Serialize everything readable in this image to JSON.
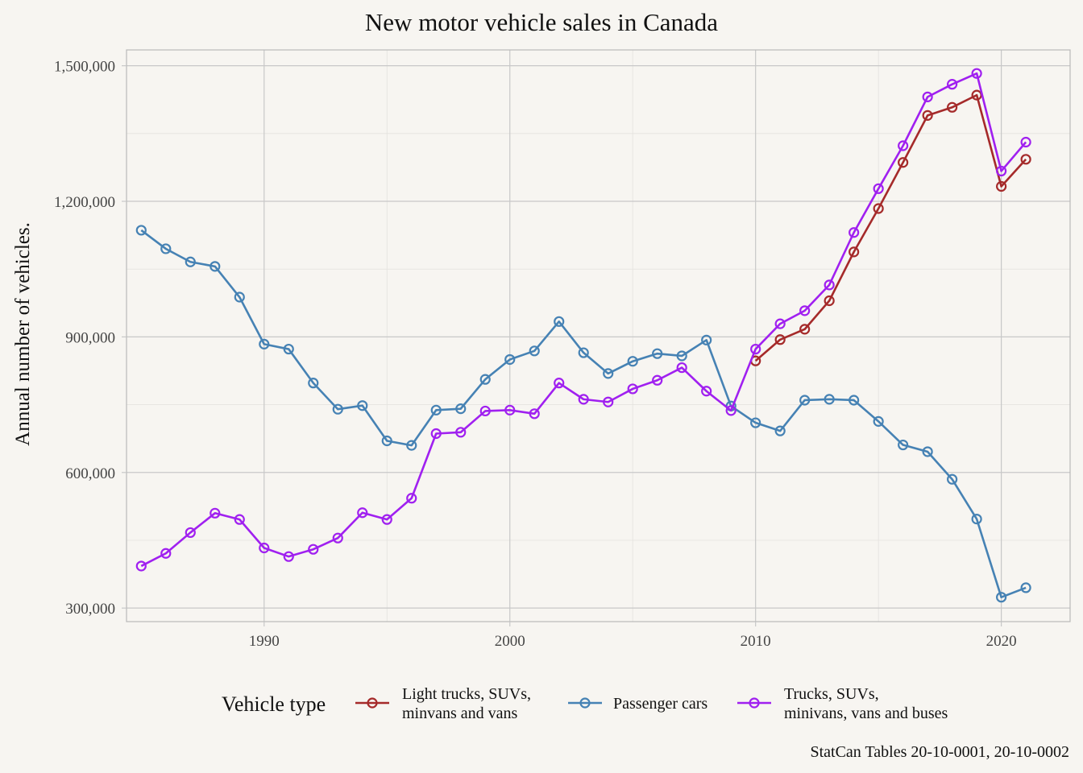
{
  "chart_data": {
    "type": "line",
    "title": "New motor vehicle sales in Canada",
    "xlabel": "",
    "ylabel": "Annual number of vehicles.",
    "xlim": [
      1984.4,
      2022.8
    ],
    "ylim": [
      270000,
      1535000
    ],
    "x_ticks": [
      1990,
      2000,
      2010,
      2020
    ],
    "y_ticks": [
      300000,
      600000,
      900000,
      1200000,
      1500000
    ],
    "y_tick_labels": [
      "300,000",
      "600,000",
      "900,000",
      "1,200,000",
      "1,500,000"
    ],
    "grid": true,
    "legend_position": "bottom",
    "legend_title": "Vehicle type",
    "caption": "StatCan Tables 20-10-0001, 20-10-0002",
    "series": [
      {
        "name": "Light trucks, SUVs,\nminvans and vans",
        "color": "#a52a2a",
        "x": [
          2010,
          2011,
          2012,
          2013,
          2014,
          2015,
          2016,
          2017,
          2018,
          2019,
          2020,
          2021
        ],
        "values": [
          847000,
          894000,
          917000,
          980000,
          1088000,
          1184000,
          1286000,
          1390000,
          1408000,
          1435000,
          1233000,
          1293000
        ]
      },
      {
        "name": "Passenger cars",
        "color": "#4682b4",
        "x": [
          1985,
          1986,
          1987,
          1988,
          1989,
          1990,
          1991,
          1992,
          1993,
          1994,
          1995,
          1996,
          1997,
          1998,
          1999,
          2000,
          2001,
          2002,
          2003,
          2004,
          2005,
          2006,
          2007,
          2008,
          2009,
          2010,
          2011,
          2012,
          2013,
          2014,
          2015,
          2016,
          2017,
          2018,
          2019,
          2020,
          2021
        ],
        "values": [
          1136000,
          1095000,
          1066000,
          1056000,
          988000,
          884000,
          873000,
          798000,
          740000,
          748000,
          670000,
          660000,
          738000,
          741000,
          806000,
          850000,
          869000,
          934000,
          865000,
          819000,
          846000,
          863000,
          858000,
          893000,
          747000,
          710000,
          692000,
          760000,
          762000,
          760000,
          713000,
          661000,
          646000,
          585000,
          497000,
          324000,
          345000
        ]
      },
      {
        "name": "Trucks, SUVs,\nminivans, vans and buses",
        "color": "#a020f0",
        "x": [
          1985,
          1986,
          1987,
          1988,
          1989,
          1990,
          1991,
          1992,
          1993,
          1994,
          1995,
          1996,
          1997,
          1998,
          1999,
          2000,
          2001,
          2002,
          2003,
          2004,
          2005,
          2006,
          2007,
          2008,
          2009,
          2010,
          2011,
          2012,
          2013,
          2014,
          2015,
          2016,
          2017,
          2018,
          2019,
          2020,
          2021
        ],
        "values": [
          393000,
          421000,
          467000,
          510000,
          496000,
          433000,
          414000,
          430000,
          455000,
          511000,
          496000,
          543000,
          686000,
          689000,
          736000,
          738000,
          730000,
          798000,
          762000,
          756000,
          785000,
          804000,
          832000,
          780000,
          737000,
          873000,
          929000,
          958000,
          1015000,
          1131000,
          1228000,
          1323000,
          1431000,
          1459000,
          1483000,
          1267000,
          1331000
        ]
      }
    ]
  }
}
